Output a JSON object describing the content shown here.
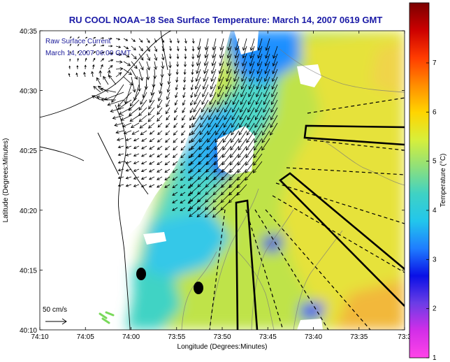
{
  "title": "RU COOL  NOAA−18  Sea Surface Temperature:  March 14, 2007 0619 GMT",
  "overlay": {
    "line1": "Raw Surface Current",
    "line2": "March 14, 2007 06:00 GMT"
  },
  "axes": {
    "xlabel": "Longitude (Degrees:Minutes)",
    "ylabel": "Latitude (Degrees:Minutes)",
    "xticks": [
      "74:10",
      "74:05",
      "74:00",
      "73:55",
      "73:50",
      "73:45",
      "73:40",
      "73:35",
      "73:3"
    ],
    "yticks": [
      "40:35",
      "40:30",
      "40:25",
      "40:20",
      "40:15",
      "40:10"
    ]
  },
  "colorbar": {
    "label": "Temperature (°C)",
    "ticks": [
      "7",
      "6",
      "5",
      "4",
      "3",
      "2",
      "1"
    ],
    "colors": [
      "#7a0000",
      "#cc0000",
      "#ff3b00",
      "#ff8c00",
      "#ffd400",
      "#d8ef3a",
      "#8fe07a",
      "#3fd2c4",
      "#22c6ec",
      "#1f7dff",
      "#0a10e6",
      "#6b3de6",
      "#d22ee8",
      "#ff44e8"
    ]
  },
  "scale": {
    "label": "50 cm/s"
  },
  "palette": {
    "land": "#ffffff",
    "cloud": "#ffffff",
    "coast": "#000000",
    "arrow": "#000000"
  }
}
